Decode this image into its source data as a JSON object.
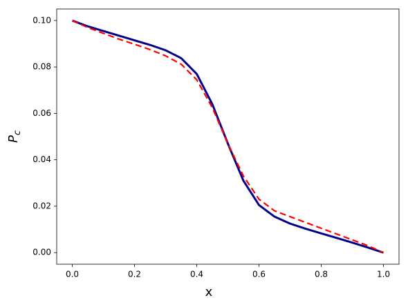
{
  "chart_data": {
    "type": "line",
    "xlabel": "x",
    "ylabel": {
      "base": "P",
      "subscript": "c"
    },
    "x": [
      0,
      0.05,
      0.1,
      0.15,
      0.2,
      0.25,
      0.3,
      0.35,
      0.4,
      0.45,
      0.5,
      0.55,
      0.6,
      0.65,
      0.7,
      0.75,
      0.8,
      0.85,
      0.9,
      0.95,
      1.0
    ],
    "series": [
      {
        "color": "#00008b",
        "style": "solid",
        "values": [
          0.1,
          0.0975,
          0.0955,
          0.0935,
          0.0915,
          0.0895,
          0.0872,
          0.0838,
          0.077,
          0.064,
          0.047,
          0.031,
          0.0205,
          0.0155,
          0.0125,
          0.0103,
          0.0083,
          0.0063,
          0.0043,
          0.0022,
          0.0
        ]
      },
      {
        "color": "#ff0000",
        "style": "dashed",
        "values": [
          0.1,
          0.097,
          0.0945,
          0.092,
          0.0898,
          0.0875,
          0.0848,
          0.0812,
          0.0745,
          0.0625,
          0.047,
          0.033,
          0.023,
          0.018,
          0.0155,
          0.013,
          0.0105,
          0.008,
          0.0055,
          0.003,
          0.0
        ]
      }
    ],
    "xlim": [
      -0.05,
      1.05
    ],
    "ylim": [
      -0.005,
      0.105
    ],
    "xticks": [
      {
        "value": 0,
        "label": "0.0"
      },
      {
        "value": 0.2,
        "label": "0.2"
      },
      {
        "value": 0.4,
        "label": "0.4"
      },
      {
        "value": 0.6,
        "label": "0.6"
      },
      {
        "value": 0.8,
        "label": "0.8"
      },
      {
        "value": 1.0,
        "label": "1.0"
      }
    ],
    "yticks": [
      {
        "value": 0,
        "label": "0.00"
      },
      {
        "value": 0.02,
        "label": "0.02"
      },
      {
        "value": 0.04,
        "label": "0.04"
      },
      {
        "value": 0.06,
        "label": "0.06"
      },
      {
        "value": 0.08,
        "label": "0.08"
      },
      {
        "value": 0.1,
        "label": "0.10"
      }
    ],
    "grid": false
  }
}
